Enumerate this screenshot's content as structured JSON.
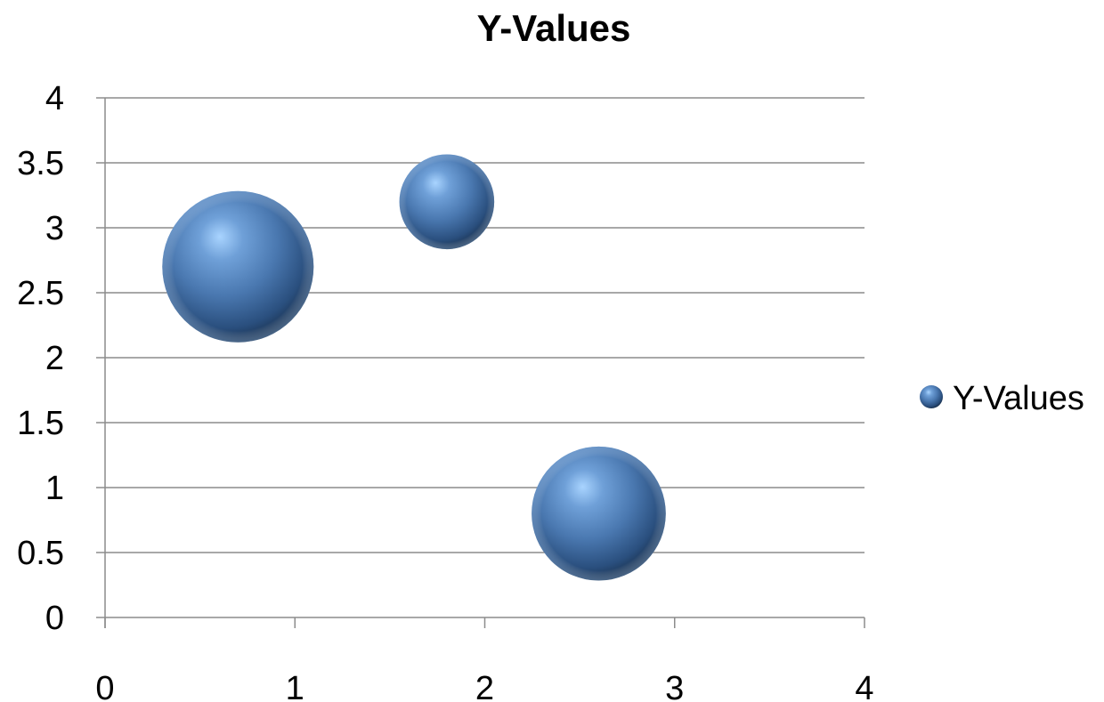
{
  "chart_data": {
    "type": "bubble",
    "title": "Y-Values",
    "xlabel": "",
    "ylabel": "",
    "xlim": [
      0,
      4
    ],
    "ylim": [
      0,
      4
    ],
    "x_ticks": [
      "0",
      "1",
      "2",
      "3",
      "4"
    ],
    "y_ticks": [
      "0",
      "0.5",
      "1",
      "1.5",
      "2",
      "2.5",
      "3",
      "3.5",
      "4"
    ],
    "grid": "horizontal",
    "legend_position": "right",
    "series": [
      {
        "name": "Y-Values",
        "color": "#4f81bd",
        "points": [
          {
            "x": 0.7,
            "y": 2.7,
            "size": 2.8
          },
          {
            "x": 1.8,
            "y": 3.2,
            "size": 1.1
          },
          {
            "x": 2.6,
            "y": 0.8,
            "size": 2.2
          }
        ]
      }
    ]
  }
}
